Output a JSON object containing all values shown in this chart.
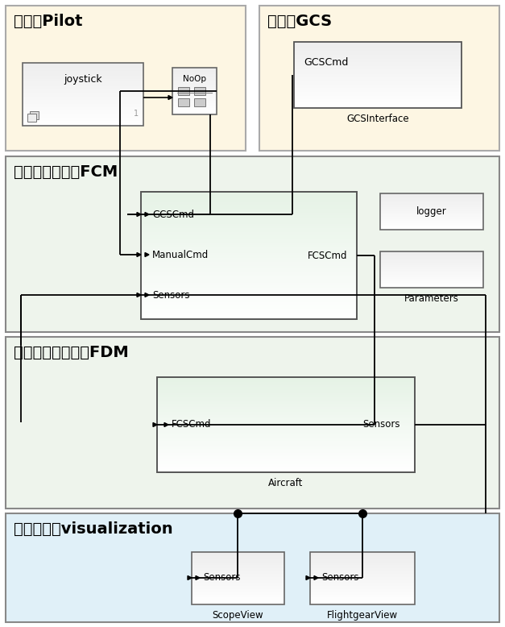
{
  "bg_pilot": "#fdf6e3",
  "bg_gcs": "#fdf6e3",
  "bg_fcm": "#eef4ec",
  "bg_fdm": "#eef4ec",
  "bg_vis": "#e0f0f8",
  "pilot_label": "驾驶员Pilot",
  "gcs_label": "地面站GCS",
  "fcm_label": "飞行控制器模型FCM",
  "fdm_label": "飞行器动力学模型FDM",
  "vis_label": "数据可视化visualization",
  "joystick_label": "joystick",
  "noOp_label": "NoOp",
  "gcsinterface_label": "GCSInterface",
  "gcscmd_in_label": "GCSCmd",
  "fcm_inputs": [
    "GCSCmd",
    "ManualCmd",
    "Sensors"
  ],
  "fcm_output": "FCSCmd",
  "logger_label": "logger",
  "params_label": "Parameters",
  "fdm_input": "FCSCmd",
  "fdm_output": "Sensors",
  "fdm_block_label": "Aircraft",
  "scopeview_label": "ScopeView",
  "flightgear_label": "FlightgearView",
  "scopeview_input": "Sensors",
  "flightgear_input": "Sensors",
  "panel_label_fontsize": 14,
  "block_label_fontsize": 9,
  "sublabel_fontsize": 8.5
}
